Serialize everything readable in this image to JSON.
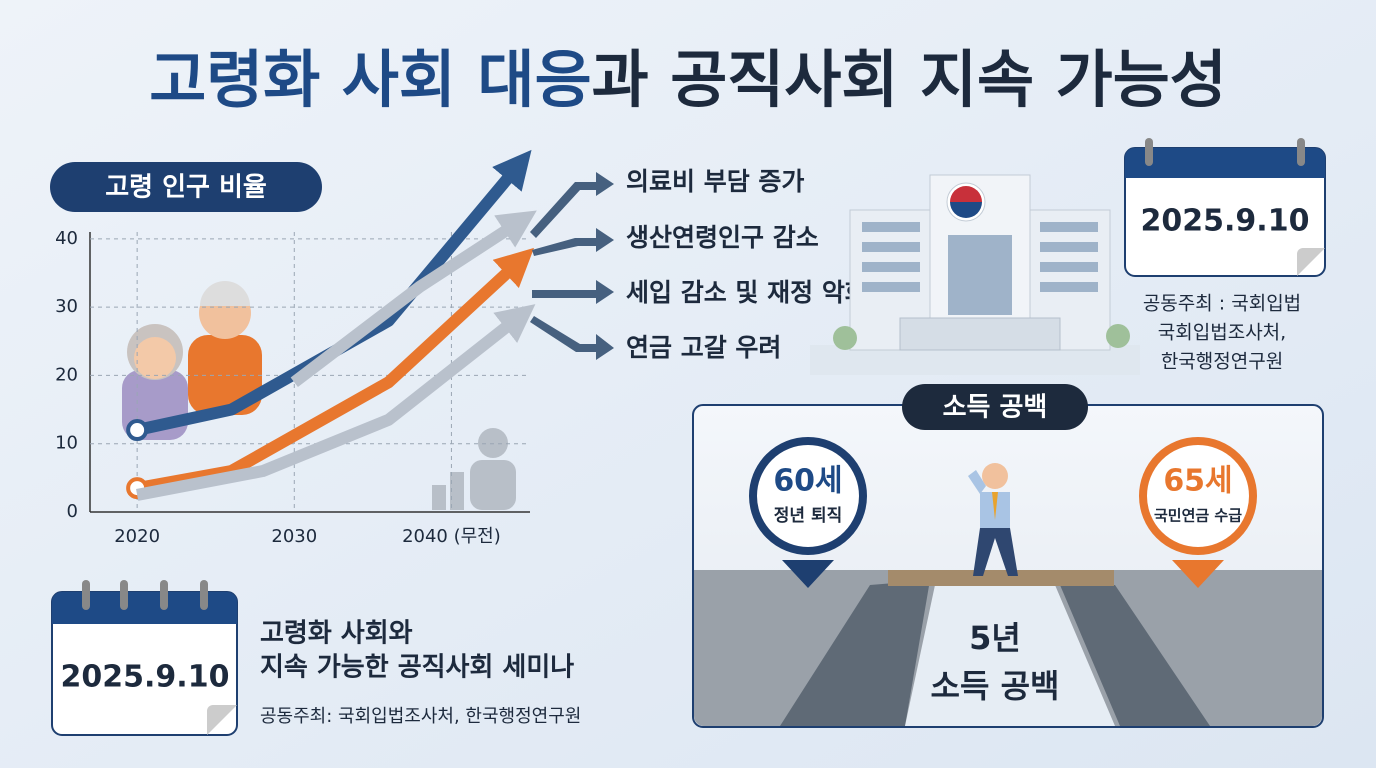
{
  "title": [
    "고령화 사회 대응",
    "과 공직사회 지속 가능성"
  ],
  "chart_data": {
    "type": "line",
    "title": "고령 인구 비율",
    "xlim": [
      2017,
      2045
    ],
    "xticks": [
      2020,
      2030,
      {
        "value": 2040,
        "label": "2040 (무전)"
      }
    ],
    "ylim": [
      0,
      41
    ],
    "yticks": [
      0,
      10,
      20,
      30,
      40
    ],
    "grid": true,
    "series": [
      {
        "color": "#2f5a8f",
        "x": [
          2020,
          2026,
          2036,
          2044
        ],
        "values": [
          12,
          15,
          28,
          50
        ],
        "start_marker": true
      },
      {
        "color": "#b9c1cc",
        "x": [
          2030,
          2038,
          2044
        ],
        "values": [
          19,
          33,
          42
        ],
        "start_marker": false
      },
      {
        "color": "#e8772e",
        "x": [
          2020,
          2026,
          2036,
          2044
        ],
        "values": [
          3.5,
          6,
          19,
          36
        ],
        "start_marker": true
      },
      {
        "color": "#b9c1cc",
        "x": [
          2020,
          2028,
          2036,
          2044
        ],
        "values": [
          2.5,
          6,
          13.5,
          28
        ],
        "start_marker": false
      }
    ]
  },
  "impacts": [
    "의료비 부담 증가",
    "생산연령인구 감소",
    "세입 감소 및 재정 악화",
    "연금 고갈 우려"
  ],
  "top_event": {
    "date": "2025.9.10",
    "cohost": [
      "공동주최 : 국회입법",
      "국회입법조사처,",
      "한국행정연구원"
    ]
  },
  "income_gap": {
    "title": "소득 공백",
    "retire": {
      "age": "60세",
      "label": "정년 퇴직"
    },
    "pension": {
      "age": "65세",
      "label": "국민연금 수급"
    },
    "gap": [
      "5년",
      "소득 공백"
    ]
  },
  "seminar": {
    "date": "2025.9.10",
    "title": [
      "고령화 사회와",
      "지속 가능한 공직사회 세미나"
    ],
    "cohost": "공동주최: 국회입법조사처, 한국행정연구원"
  }
}
